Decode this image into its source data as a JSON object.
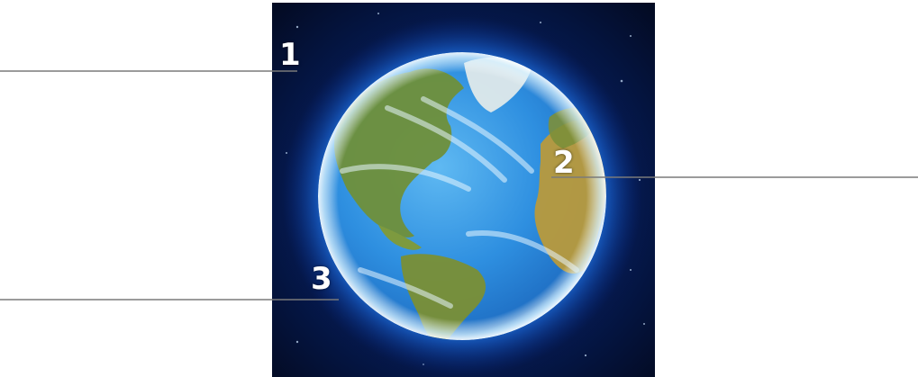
{
  "callouts": [
    {
      "number": "1",
      "target": "space"
    },
    {
      "number": "2",
      "target": "continent"
    },
    {
      "number": "3",
      "target": "atmosphere"
    }
  ],
  "colors": {
    "space": "#04102e",
    "glow": "#2b8cff",
    "ocean": "#2e8fe0",
    "land_green": "#6f8f3a",
    "land_yellow": "#b89a3c",
    "ice": "#dfe9ea",
    "line": "#7a7a7a"
  }
}
